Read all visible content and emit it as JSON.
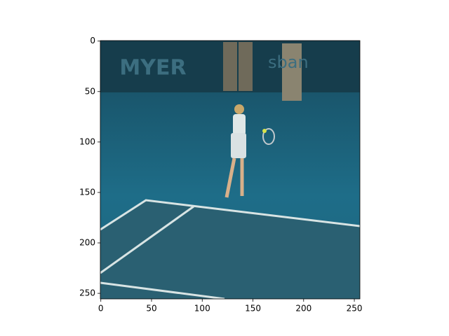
{
  "chart_data": {
    "type": "image",
    "image_texts": [
      "MYER",
      "sban"
    ],
    "xlim": [
      -0.5,
      255.5
    ],
    "ylim": [
      255.5,
      -0.5
    ],
    "xticks": [
      0,
      50,
      100,
      150,
      200,
      250
    ],
    "yticks": [
      0,
      50,
      100,
      150,
      200,
      250
    ]
  }
}
